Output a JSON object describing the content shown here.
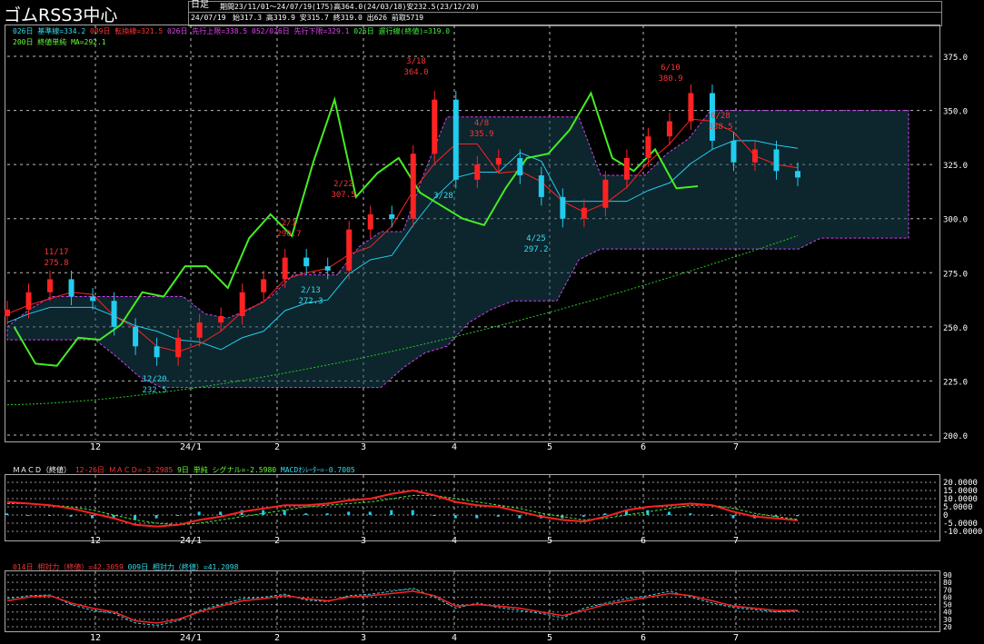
{
  "header": {
    "title": "ゴムRSS3中心",
    "period_label": "日足",
    "summary": "期間23/11/01～24/07/19(175)高364.0(24/03/18)安232.5(23/12/20)",
    "date": "24/07/19",
    "ohlc": "始317.3 高319.9 安315.7 終319.0 出626 前取5719"
  },
  "legend": {
    "line1": [
      {
        "text": "026日 基準線=334.2",
        "color": "cyan"
      },
      {
        "text": "009日 転換線=321.5",
        "color": "red"
      },
      {
        "text": "026日 先行上限=338.5",
        "color": "magenta"
      },
      {
        "text": "052/026日 先行下限=329.1",
        "color": "magenta"
      },
      {
        "text": "026日 遅行線(終値)=319.0",
        "color": "green"
      }
    ],
    "line2": "200日 終値単純 MA=292.1"
  },
  "macd_legend": {
    "label": "ＭＡＣＤ（終値）",
    "macd": "12-26日 ＭＡＣＤ=-3.2985",
    "signal": "9日 単純 シグナル=-2.5980",
    "osc": "MACDｵｼﾚｰﾀｰ=-0.7005"
  },
  "rsi_legend": {
    "rsi14": "014日 相対力（終値）=42.3059",
    "rsi9": "009日 相対力（終値）=41.2098"
  },
  "colors": {
    "bg": "#000000",
    "up": "#ff2222",
    "down": "#22ccee",
    "kijun": "#22ccee",
    "tenkan": "#ff2222",
    "span": "#cc44ee",
    "chikou": "#44ee22",
    "ma": "#22cc22"
  },
  "chart_data": [
    {
      "type": "candlestick",
      "title": "ゴムRSS3中心",
      "x_tick_labels": [
        "12",
        "24/1",
        "2",
        "3",
        "4",
        "5",
        "6",
        "7"
      ],
      "y_tick_labels": [
        "200.0",
        "225.0",
        "250.0",
        "275.0",
        "300.0",
        "325.0",
        "350.0",
        "375.0"
      ],
      "ylim": [
        200,
        380
      ],
      "grid": true,
      "close_series": [
        {
          "date": "23/11/01",
          "close": 258
        },
        {
          "date": "23/11/10",
          "close": 266
        },
        {
          "date": "23/11/17",
          "close": 272
        },
        {
          "date": "23/11/24",
          "close": 264
        },
        {
          "date": "23/12/01",
          "close": 262
        },
        {
          "date": "23/12/08",
          "close": 250
        },
        {
          "date": "23/12/14",
          "close": 241
        },
        {
          "date": "23/12/20",
          "close": 236
        },
        {
          "date": "23/12/27",
          "close": 245
        },
        {
          "date": "24/01/05",
          "close": 252
        },
        {
          "date": "24/01/12",
          "close": 255
        },
        {
          "date": "24/01/19",
          "close": 266
        },
        {
          "date": "24/01/26",
          "close": 272
        },
        {
          "date": "24/02/02",
          "close": 282
        },
        {
          "date": "24/02/08",
          "close": 278
        },
        {
          "date": "24/02/13",
          "close": 276
        },
        {
          "date": "24/02/20",
          "close": 295
        },
        {
          "date": "24/02/27",
          "close": 302
        },
        {
          "date": "24/03/04",
          "close": 300
        },
        {
          "date": "24/03/11",
          "close": 330
        },
        {
          "date": "24/03/18",
          "close": 355
        },
        {
          "date": "24/03/25",
          "close": 318
        },
        {
          "date": "24/04/01",
          "close": 325
        },
        {
          "date": "24/04/08",
          "close": 328
        },
        {
          "date": "24/04/15",
          "close": 320
        },
        {
          "date": "24/04/22",
          "close": 310
        },
        {
          "date": "24/04/25",
          "close": 300
        },
        {
          "date": "24/05/02",
          "close": 305
        },
        {
          "date": "24/05/13",
          "close": 318
        },
        {
          "date": "24/05/20",
          "close": 328
        },
        {
          "date": "24/05/27",
          "close": 338
        },
        {
          "date": "24/06/03",
          "close": 345
        },
        {
          "date": "24/06/10",
          "close": 358
        },
        {
          "date": "24/06/17",
          "close": 336
        },
        {
          "date": "24/06/24",
          "close": 326
        },
        {
          "date": "24/07/01",
          "close": 332
        },
        {
          "date": "24/07/08",
          "close": 322
        },
        {
          "date": "24/07/19",
          "close": 319
        }
      ],
      "ma200": {
        "start": 214,
        "end": 292.1
      },
      "annotations": [
        {
          "date": "11/17",
          "value": "275.8"
        },
        {
          "date": "12/20",
          "value": "232.5"
        },
        {
          "date": "2/1",
          "value": "290.7"
        },
        {
          "date": "2/13",
          "value": "272.3"
        },
        {
          "date": "2/22",
          "value": "307.5"
        },
        {
          "date": "3/18",
          "value": "364.0"
        },
        {
          "date": "3/28",
          "value": ""
        },
        {
          "date": "4/8",
          "value": "335.9"
        },
        {
          "date": "4/25",
          "value": "297.2"
        },
        {
          "date": "6/10",
          "value": "380.9"
        },
        {
          "date": "6/28",
          "value": "338.5"
        }
      ]
    },
    {
      "type": "line",
      "title": "MACD",
      "y_tick_labels": [
        "20.0000",
        "15.0000",
        "10.0000",
        "5.0000",
        "0",
        "-5.0000",
        "-10.0000"
      ],
      "ylim": [
        -10,
        20
      ],
      "series": [
        {
          "name": "MACD",
          "values": [
            8,
            7,
            6,
            4,
            1,
            -2,
            -6,
            -7,
            -6,
            -3,
            -1,
            2,
            4,
            6,
            6,
            7,
            9,
            10,
            13,
            15,
            12,
            8,
            6,
            5,
            2,
            -1,
            -3,
            -4,
            -1,
            3,
            5,
            6,
            7,
            6,
            2,
            -1,
            -2,
            -3.3
          ]
        },
        {
          "name": "シグナル",
          "values": [
            7,
            7,
            6,
            5,
            3,
            0,
            -3,
            -5,
            -6,
            -5,
            -3,
            -1,
            1,
            3,
            5,
            6,
            7,
            8,
            10,
            12,
            12,
            10,
            8,
            6,
            4,
            1,
            -1,
            -3,
            -2,
            0,
            2,
            4,
            6,
            6,
            4,
            1,
            -1,
            -2.6
          ]
        }
      ]
    },
    {
      "type": "line",
      "title": "RSI",
      "y_tick_labels": [
        "90",
        "80",
        "70",
        "60",
        "50",
        "40",
        "30",
        "20"
      ],
      "ylim": [
        15,
        95
      ],
      "series": [
        {
          "name": "014日 相対力",
          "values": [
            55,
            60,
            62,
            52,
            45,
            40,
            28,
            25,
            30,
            40,
            48,
            55,
            58,
            62,
            58,
            55,
            60,
            62,
            65,
            68,
            62,
            48,
            50,
            48,
            45,
            40,
            35,
            42,
            50,
            55,
            60,
            65,
            62,
            55,
            48,
            45,
            42,
            42.3
          ]
        },
        {
          "name": "009日 相対力",
          "values": [
            58,
            62,
            63,
            50,
            42,
            38,
            25,
            22,
            28,
            42,
            50,
            58,
            60,
            64,
            56,
            54,
            62,
            64,
            68,
            72,
            60,
            45,
            52,
            46,
            42,
            38,
            32,
            45,
            52,
            58,
            62,
            68,
            60,
            52,
            46,
            43,
            40,
            41.2
          ]
        }
      ]
    }
  ]
}
